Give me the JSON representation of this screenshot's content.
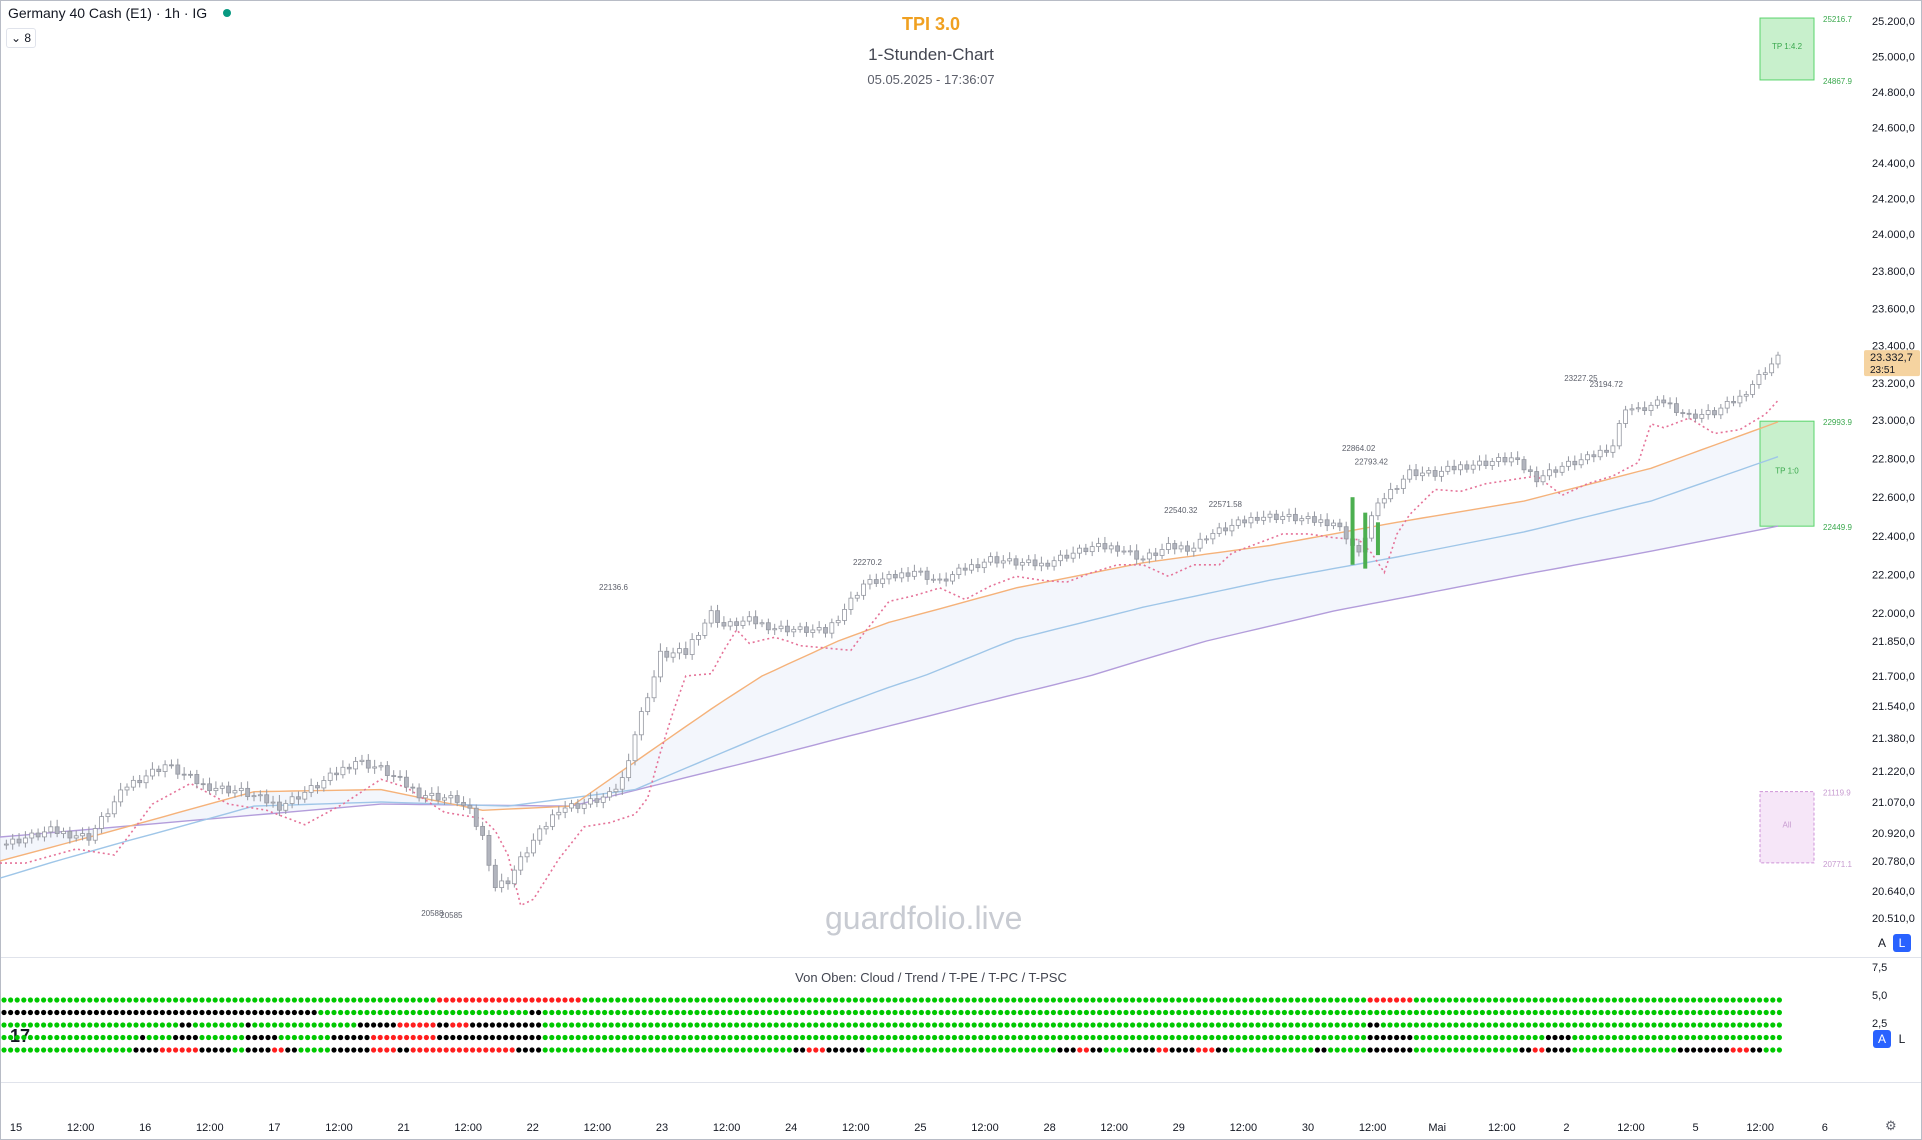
{
  "header": {
    "symbol": "Germany 40 Cash (E1) · 1h · IG",
    "collapse_label": "⌄ 8"
  },
  "titles": {
    "indicator": "TPI 3.0",
    "chart_kind": "1-Stunden-Chart",
    "timestamp": "05.05.2025 - 17:36:07"
  },
  "watermark": "guardfolio.live",
  "oscillator": {
    "label": "Von Oben: Cloud / Trend / T-PE / T-PC / T-PSC",
    "ticks": [
      "7,5",
      "5,0",
      "2,5"
    ]
  },
  "scale_buttons": {
    "auto": "A",
    "log": "L"
  },
  "price_tag": {
    "value": "23.332,7",
    "countdown": "23:51"
  },
  "colors": {
    "bg": "#ffffff",
    "candle": "#b2b5be",
    "ema_fast": "#f5b27a",
    "ema_slow": "#9fc6e8",
    "ema_long": "#b39ddb",
    "trail": "#e57399",
    "dot_green": "#00c800",
    "dot_red": "#ff1e1e",
    "dot_black": "#000000",
    "tp_green": "#59d46b",
    "sl_violet": "#ce93d8",
    "price_tag": "#f5d3a0"
  },
  "chart_data": {
    "type": "candlestick",
    "title": "TPI 3.0",
    "subtitle": "1-Stunden-Chart",
    "ylim": [
      20500,
      25200
    ],
    "y_ticks": [
      25200,
      25000,
      24800,
      24600,
      24400,
      24200,
      24000,
      23800,
      23600,
      23400,
      23200,
      23000,
      22800,
      22600,
      22400,
      22200,
      22000,
      21850,
      21700,
      21540,
      21380,
      21220,
      21070,
      20920,
      20780,
      20640,
      20510
    ],
    "y_tick_labels": [
      "25.200,0",
      "25.000,0",
      "24.800,0",
      "24.600,0",
      "24.400,0",
      "24.200,0",
      "24.000,0",
      "23.800,0",
      "23.600,0",
      "23.400,0",
      "23.200,0",
      "23.000,0",
      "22.800,0",
      "22.600,0",
      "22.400,0",
      "22.200,0",
      "22.000,0",
      "21.850,0",
      "21.700,0",
      "21.540,0",
      "21.380,0",
      "21.220,0",
      "21.070,0",
      "20.920,0",
      "20.780,0",
      "20.640,0",
      "20.510,0"
    ],
    "x_ticks": [
      "15",
      "12:00",
      "16",
      "12:00",
      "17",
      "12:00",
      "21",
      "12:00",
      "22",
      "12:00",
      "23",
      "12:00",
      "24",
      "12:00",
      "25",
      "12:00",
      "28",
      "12:00",
      "29",
      "12:00",
      "30",
      "12:00",
      "Mai",
      "12:00",
      "2",
      "12:00",
      "5",
      "12:00",
      "6"
    ],
    "close_path": [
      [
        0,
        20860
      ],
      [
        8,
        20930
      ],
      [
        14,
        20900
      ],
      [
        20,
        21150
      ],
      [
        26,
        21250
      ],
      [
        32,
        21150
      ],
      [
        38,
        21120
      ],
      [
        44,
        21050
      ],
      [
        50,
        21150
      ],
      [
        56,
        21270
      ],
      [
        60,
        21230
      ],
      [
        66,
        21110
      ],
      [
        72,
        21080
      ],
      [
        74,
        21020
      ],
      [
        76,
        20900
      ],
      [
        78,
        20660
      ],
      [
        80,
        20690
      ],
      [
        84,
        20880
      ],
      [
        88,
        21040
      ],
      [
        92,
        21060
      ],
      [
        96,
        21100
      ],
      [
        98,
        21180
      ],
      [
        100,
        21400
      ],
      [
        102,
        21600
      ],
      [
        104,
        21790
      ],
      [
        108,
        21800
      ],
      [
        112,
        22000
      ],
      [
        114,
        21930
      ],
      [
        118,
        21960
      ],
      [
        122,
        21920
      ],
      [
        126,
        21910
      ],
      [
        130,
        21900
      ],
      [
        132,
        21980
      ],
      [
        136,
        22150
      ],
      [
        140,
        22180
      ],
      [
        144,
        22220
      ],
      [
        148,
        22160
      ],
      [
        152,
        22230
      ],
      [
        156,
        22280
      ],
      [
        160,
        22260
      ],
      [
        164,
        22250
      ],
      [
        168,
        22300
      ],
      [
        172,
        22340
      ],
      [
        176,
        22340
      ],
      [
        180,
        22280
      ],
      [
        184,
        22340
      ],
      [
        188,
        22340
      ],
      [
        190,
        22400
      ],
      [
        194,
        22450
      ],
      [
        198,
        22500
      ],
      [
        202,
        22500
      ],
      [
        206,
        22480
      ],
      [
        210,
        22470
      ],
      [
        212,
        22400
      ],
      [
        214,
        22300
      ],
      [
        216,
        22500
      ],
      [
        218,
        22600
      ],
      [
        222,
        22730
      ],
      [
        226,
        22720
      ],
      [
        230,
        22760
      ],
      [
        234,
        22780
      ],
      [
        238,
        22800
      ],
      [
        242,
        22700
      ],
      [
        246,
        22760
      ],
      [
        250,
        22800
      ],
      [
        254,
        22870
      ],
      [
        256,
        23070
      ],
      [
        258,
        23050
      ],
      [
        262,
        23100
      ],
      [
        266,
        23020
      ],
      [
        270,
        23040
      ],
      [
        274,
        23120
      ],
      [
        278,
        23270
      ],
      [
        280,
        23332.7
      ]
    ],
    "ema_fast": [
      [
        0,
        20780
      ],
      [
        20,
        20950
      ],
      [
        40,
        21120
      ],
      [
        60,
        21130
      ],
      [
        76,
        21030
      ],
      [
        90,
        21050
      ],
      [
        104,
        21350
      ],
      [
        120,
        21700
      ],
      [
        140,
        21950
      ],
      [
        160,
        22130
      ],
      [
        180,
        22260
      ],
      [
        200,
        22350
      ],
      [
        220,
        22470
      ],
      [
        240,
        22580
      ],
      [
        260,
        22750
      ],
      [
        280,
        22990
      ]
    ],
    "ema_slow": [
      [
        0,
        20700
      ],
      [
        20,
        20880
      ],
      [
        40,
        21050
      ],
      [
        60,
        21070
      ],
      [
        80,
        21050
      ],
      [
        100,
        21130
      ],
      [
        120,
        21390
      ],
      [
        140,
        21640
      ],
      [
        160,
        21860
      ],
      [
        180,
        22030
      ],
      [
        200,
        22170
      ],
      [
        220,
        22290
      ],
      [
        240,
        22420
      ],
      [
        260,
        22580
      ],
      [
        280,
        22810
      ]
    ],
    "ema_long": [
      [
        0,
        20900
      ],
      [
        30,
        20980
      ],
      [
        60,
        21060
      ],
      [
        90,
        21050
      ],
      [
        120,
        21280
      ],
      [
        150,
        21520
      ],
      [
        180,
        21770
      ],
      [
        210,
        22010
      ],
      [
        240,
        22200
      ],
      [
        260,
        22320
      ],
      [
        280,
        22450
      ]
    ],
    "annotations": [
      {
        "text": "22136.6",
        "i": 100,
        "y": 22140
      },
      {
        "text": "22270.2",
        "i": 140,
        "y": 22270
      },
      {
        "text": "22540.32",
        "i": 189,
        "y": 22540
      },
      {
        "text": "22571.58",
        "i": 196,
        "y": 22570
      },
      {
        "text": "22864.02",
        "i": 217,
        "y": 22860
      },
      {
        "text": "22793.42",
        "i": 219,
        "y": 22790
      },
      {
        "text": "23227.25",
        "i": 252,
        "y": 23230
      },
      {
        "text": "23194.72",
        "i": 256,
        "y": 23200
      },
      {
        "text": "20588",
        "i": 72,
        "y": 20540
      },
      {
        "text": "20585",
        "i": 75,
        "y": 20530
      }
    ],
    "zones": [
      {
        "label": "TP 1:4.2",
        "top": 25216.7,
        "bottom": 24867.9,
        "top_label": "25216.7",
        "bottom_label": "24867.9",
        "kind": "tp"
      },
      {
        "label": "TP 1:0",
        "top": 22993.9,
        "bottom": 22449.9,
        "top_label": "22993.9",
        "bottom_label": "22449.9",
        "kind": "tp"
      },
      {
        "label": "All",
        "top": 21119.9,
        "bottom": 20771.1,
        "top_label": "21119.9",
        "bottom_label": "20771.1",
        "kind": "sl"
      }
    ],
    "oscillator_rows": [
      {
        "name": "Cloud",
        "segments": [
          [
            0,
            66,
            "g"
          ],
          [
            66,
            88,
            "r"
          ],
          [
            88,
            207,
            "g"
          ],
          [
            207,
            214,
            "r"
          ],
          [
            214,
            270,
            "g"
          ]
        ]
      },
      {
        "name": "Trend",
        "segments": [
          [
            0,
            48,
            "k"
          ],
          [
            48,
            80,
            "g"
          ],
          [
            80,
            82,
            "k"
          ],
          [
            82,
            270,
            "g"
          ]
        ]
      },
      {
        "name": "T-PE",
        "segments": [
          [
            0,
            27,
            "g"
          ],
          [
            27,
            29,
            "k"
          ],
          [
            29,
            37,
            "g"
          ],
          [
            37,
            38,
            "k"
          ],
          [
            38,
            54,
            "g"
          ],
          [
            54,
            60,
            "k"
          ],
          [
            60,
            66,
            "r"
          ],
          [
            66,
            68,
            "k"
          ],
          [
            68,
            71,
            "r"
          ],
          [
            71,
            82,
            "k"
          ],
          [
            82,
            207,
            "g"
          ],
          [
            207,
            209,
            "k"
          ],
          [
            209,
            270,
            "g"
          ]
        ]
      },
      {
        "name": "T-PC",
        "segments": [
          [
            0,
            21,
            "g"
          ],
          [
            21,
            22,
            "k"
          ],
          [
            22,
            26,
            "g"
          ],
          [
            26,
            30,
            "k"
          ],
          [
            30,
            37,
            "g"
          ],
          [
            37,
            42,
            "k"
          ],
          [
            42,
            50,
            "g"
          ],
          [
            50,
            56,
            "k"
          ],
          [
            56,
            66,
            "r"
          ],
          [
            66,
            82,
            "k"
          ],
          [
            82,
            207,
            "g"
          ],
          [
            207,
            214,
            "k"
          ],
          [
            214,
            234,
            "g"
          ],
          [
            234,
            238,
            "k"
          ],
          [
            238,
            270,
            "g"
          ]
        ]
      },
      {
        "name": "T-PSC",
        "segments": [
          [
            0,
            20,
            "g"
          ],
          [
            20,
            24,
            "k"
          ],
          [
            24,
            30,
            "r"
          ],
          [
            30,
            35,
            "k"
          ],
          [
            35,
            37,
            "g"
          ],
          [
            37,
            41,
            "k"
          ],
          [
            41,
            43,
            "r"
          ],
          [
            43,
            45,
            "k"
          ],
          [
            45,
            50,
            "g"
          ],
          [
            50,
            56,
            "k"
          ],
          [
            56,
            60,
            "r"
          ],
          [
            60,
            62,
            "k"
          ],
          [
            62,
            78,
            "r"
          ],
          [
            78,
            82,
            "k"
          ],
          [
            82,
            120,
            "g"
          ],
          [
            120,
            122,
            "k"
          ],
          [
            122,
            125,
            "r"
          ],
          [
            125,
            131,
            "k"
          ],
          [
            131,
            160,
            "g"
          ],
          [
            160,
            163,
            "k"
          ],
          [
            163,
            165,
            "r"
          ],
          [
            165,
            167,
            "k"
          ],
          [
            167,
            171,
            "g"
          ],
          [
            171,
            175,
            "k"
          ],
          [
            175,
            177,
            "r"
          ],
          [
            177,
            181,
            "k"
          ],
          [
            181,
            184,
            "r"
          ],
          [
            184,
            186,
            "k"
          ],
          [
            186,
            199,
            "g"
          ],
          [
            199,
            201,
            "k"
          ],
          [
            201,
            207,
            "g"
          ],
          [
            207,
            214,
            "k"
          ],
          [
            214,
            230,
            "g"
          ],
          [
            230,
            232,
            "k"
          ],
          [
            232,
            234,
            "r"
          ],
          [
            234,
            238,
            "k"
          ],
          [
            238,
            254,
            "g"
          ],
          [
            254,
            262,
            "k"
          ],
          [
            262,
            265,
            "r"
          ],
          [
            265,
            267,
            "k"
          ],
          [
            267,
            270,
            "g"
          ]
        ]
      }
    ]
  }
}
